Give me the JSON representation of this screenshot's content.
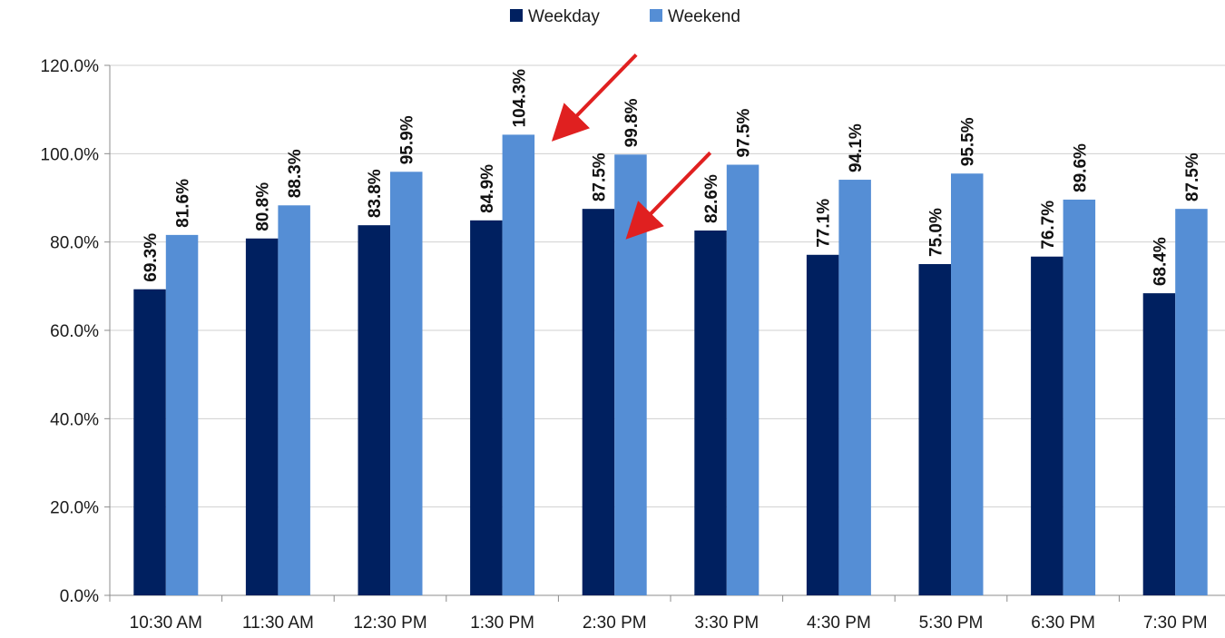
{
  "chart_data": {
    "type": "bar",
    "categories": [
      "10:30 AM",
      "11:30 AM",
      "12:30 PM",
      "1:30 PM",
      "2:30 PM",
      "3:30 PM",
      "4:30 PM",
      "5:30 PM",
      "6:30 PM",
      "7:30 PM"
    ],
    "series": [
      {
        "name": "Weekday",
        "color": "#002060",
        "values": [
          69.3,
          80.8,
          83.8,
          84.9,
          87.5,
          82.6,
          77.1,
          75.0,
          76.7,
          68.4
        ],
        "labels": [
          "69.3%",
          "80.8%",
          "83.8%",
          "84.9%",
          "87.5%",
          "82.6%",
          "77.1%",
          "75.0%",
          "76.7%",
          "68.4%"
        ]
      },
      {
        "name": "Weekend",
        "color": "#558ED5",
        "values": [
          81.6,
          88.3,
          95.9,
          104.3,
          99.8,
          97.5,
          94.1,
          95.5,
          89.6,
          87.5
        ],
        "labels": [
          "81.6%",
          "88.3%",
          "95.9%",
          "104.3%",
          "99.8%",
          "97.5%",
          "94.1%",
          "95.5%",
          "89.6%",
          "87.5%"
        ]
      }
    ],
    "ylim": [
      0,
      120
    ],
    "yticks": [
      0,
      20,
      40,
      60,
      80,
      100,
      120
    ],
    "ytick_labels": [
      "0.0%",
      "20.0%",
      "40.0%",
      "60.0%",
      "80.0%",
      "100.0%",
      "120.0%"
    ],
    "grid": true,
    "legend": "top-center",
    "annotations": [
      {
        "type": "arrow",
        "color": "#e02020",
        "points_to": {
          "category": "1:30 PM",
          "series": "Weekend"
        }
      },
      {
        "type": "arrow",
        "color": "#e02020",
        "points_to": {
          "category": "2:30 PM",
          "series": "Weekend"
        }
      }
    ]
  }
}
